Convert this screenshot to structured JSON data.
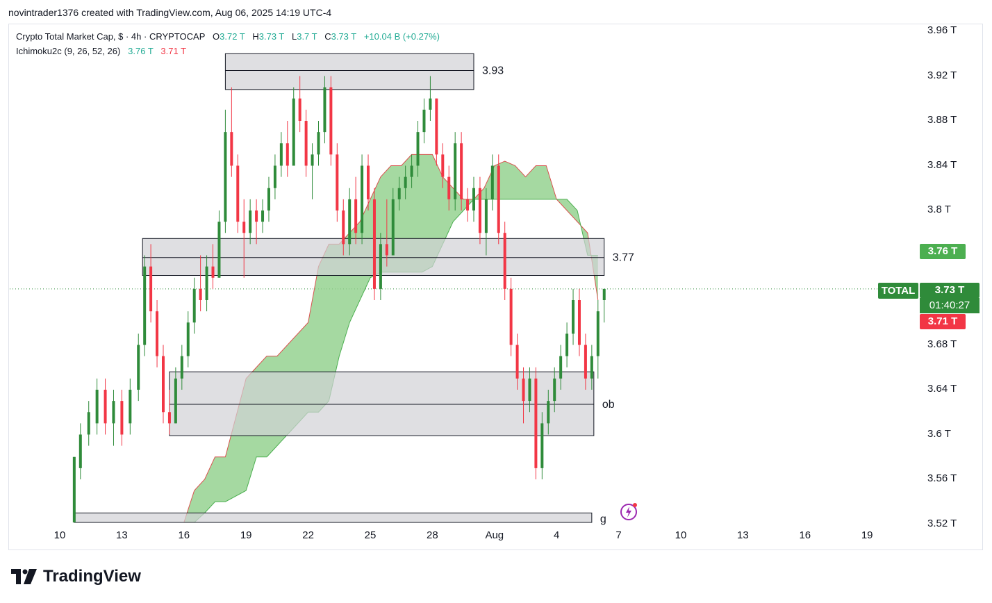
{
  "header": {
    "caption": "novintrader1376 created with TradingView.com, Aug 06, 2025 14:19 UTC-4"
  },
  "legend": {
    "symbol_line": "Crypto Total Market Cap, $ · 4h · CRYPTOCAP",
    "o_label": "O",
    "o_value": "3.72 T",
    "h_label": "H",
    "h_value": "3.73 T",
    "l_label": "L",
    "l_value": "3.7 T",
    "c_label": "C",
    "c_value": "3.73 T",
    "change": "+10.04 B (+0.27%)",
    "indicator": "Ichimoku2c (9, 26, 52, 26)",
    "ind_value1": "3.76 T",
    "ind_value2": "3.71 T"
  },
  "colors": {
    "bull": "#2f8b3a",
    "bear": "#f23645",
    "cloud": "#8fd08a",
    "zone_fill": "#d1d1d6",
    "zone_border": "#131722",
    "tag_green": "#2f8b3a",
    "tag_lightgreen": "#4caf50",
    "tag_red": "#f23645"
  },
  "price_axis": {
    "labels": [
      "3.96 T",
      "3.92 T",
      "3.88 T",
      "3.84 T",
      "3.8 T",
      "3.76 T",
      "3.72 T",
      "3.68 T",
      "3.64 T",
      "3.6 T",
      "3.56 T",
      "3.52 T"
    ],
    "tags": {
      "span_a": "3.76 T",
      "symbol": "TOTAL",
      "last": "3.73 T",
      "countdown": "01:40:27",
      "span_b": "3.71 T"
    }
  },
  "time_axis": {
    "labels": [
      "10",
      "13",
      "16",
      "19",
      "22",
      "25",
      "28",
      "Aug",
      "4",
      "7",
      "10",
      "13",
      "16",
      "19"
    ]
  },
  "branding": {
    "name": "TradingView"
  },
  "chart_data": {
    "type": "candlestick",
    "symbol": "Crypto Total Market Cap",
    "timeframe": "4h",
    "ylim": [
      3.51,
      3.97
    ],
    "last_price": 3.73,
    "zones": [
      {
        "label": "3.93",
        "from": 3.908,
        "to": 3.94,
        "mid": 3.925,
        "start_day": 18,
        "end_day": 30
      },
      {
        "label": "3.77",
        "from": 3.742,
        "to": 3.775,
        "mid": 3.758,
        "start_day": 14,
        "end_day": 36.3
      },
      {
        "label": "ob",
        "from": 3.599,
        "to": 3.656,
        "mid": 3.627,
        "start_day": 15.3,
        "end_day": 35.8
      },
      {
        "label": "g",
        "from": 3.5,
        "to": 3.53,
        "mid": 3.52,
        "start_day": 10.7,
        "end_day": 35.7
      }
    ],
    "cloud": {
      "days": [
        14,
        16,
        16.5,
        17,
        17.5,
        18,
        19,
        19.5,
        20,
        20.5,
        21,
        21.5,
        22,
        22.5,
        23,
        23.5,
        24,
        24.5,
        25,
        25.5,
        26,
        26.5,
        27,
        27.5,
        28,
        28.5,
        29,
        29.5,
        30,
        30.5,
        31,
        31.5,
        32,
        32.5,
        33,
        33.5,
        34,
        34.5,
        35,
        35.5,
        36
      ],
      "span_a": [
        3.5,
        3.52,
        3.55,
        3.56,
        3.58,
        3.58,
        3.65,
        3.66,
        3.67,
        3.67,
        3.68,
        3.69,
        3.7,
        3.75,
        3.77,
        3.77,
        3.78,
        3.79,
        3.81,
        3.83,
        3.84,
        3.84,
        3.85,
        3.85,
        3.85,
        3.83,
        3.82,
        3.81,
        3.81,
        3.82,
        3.84,
        3.844,
        3.84,
        3.83,
        3.84,
        3.84,
        3.81,
        3.8,
        3.79,
        3.78,
        3.72
      ],
      "span_b": [
        3.48,
        3.5,
        3.52,
        3.53,
        3.54,
        3.54,
        3.55,
        3.58,
        3.58,
        3.59,
        3.6,
        3.61,
        3.62,
        3.62,
        3.63,
        3.67,
        3.7,
        3.72,
        3.74,
        3.745,
        3.745,
        3.745,
        3.745,
        3.745,
        3.75,
        3.77,
        3.79,
        3.8,
        3.81,
        3.81,
        3.81,
        3.81,
        3.81,
        3.81,
        3.81,
        3.81,
        3.81,
        3.81,
        3.8,
        3.76,
        3.76
      ]
    },
    "candles": [
      {
        "day": 10.7,
        "o": 3.52,
        "h": 3.58,
        "l": 3.52,
        "c": 3.58
      },
      {
        "day": 11.0,
        "o": 3.57,
        "h": 3.61,
        "l": 3.56,
        "c": 3.6
      },
      {
        "day": 11.4,
        "o": 3.6,
        "h": 3.63,
        "l": 3.59,
        "c": 3.62
      },
      {
        "day": 11.8,
        "o": 3.61,
        "h": 3.65,
        "l": 3.6,
        "c": 3.64
      },
      {
        "day": 12.2,
        "o": 3.64,
        "h": 3.65,
        "l": 3.6,
        "c": 3.61
      },
      {
        "day": 12.6,
        "o": 3.61,
        "h": 3.64,
        "l": 3.59,
        "c": 3.63
      },
      {
        "day": 13.0,
        "o": 3.63,
        "h": 3.64,
        "l": 3.59,
        "c": 3.6
      },
      {
        "day": 13.4,
        "o": 3.61,
        "h": 3.65,
        "l": 3.6,
        "c": 3.64
      },
      {
        "day": 13.8,
        "o": 3.64,
        "h": 3.69,
        "l": 3.63,
        "c": 3.68
      },
      {
        "day": 14.1,
        "o": 3.68,
        "h": 3.76,
        "l": 3.67,
        "c": 3.75
      },
      {
        "day": 14.4,
        "o": 3.75,
        "h": 3.77,
        "l": 3.7,
        "c": 3.71
      },
      {
        "day": 14.7,
        "o": 3.71,
        "h": 3.72,
        "l": 3.66,
        "c": 3.67
      },
      {
        "day": 15.0,
        "o": 3.67,
        "h": 3.68,
        "l": 3.61,
        "c": 3.62
      },
      {
        "day": 15.3,
        "o": 3.62,
        "h": 3.64,
        "l": 3.6,
        "c": 3.61
      },
      {
        "day": 15.6,
        "o": 3.61,
        "h": 3.66,
        "l": 3.61,
        "c": 3.65
      },
      {
        "day": 15.9,
        "o": 3.65,
        "h": 3.68,
        "l": 3.64,
        "c": 3.67
      },
      {
        "day": 16.2,
        "o": 3.67,
        "h": 3.71,
        "l": 3.66,
        "c": 3.7
      },
      {
        "day": 16.5,
        "o": 3.7,
        "h": 3.74,
        "l": 3.69,
        "c": 3.73
      },
      {
        "day": 16.8,
        "o": 3.73,
        "h": 3.76,
        "l": 3.71,
        "c": 3.72
      },
      {
        "day": 17.1,
        "o": 3.72,
        "h": 3.76,
        "l": 3.71,
        "c": 3.75
      },
      {
        "day": 17.4,
        "o": 3.75,
        "h": 3.77,
        "l": 3.73,
        "c": 3.74
      },
      {
        "day": 17.7,
        "o": 3.74,
        "h": 3.8,
        "l": 3.74,
        "c": 3.79
      },
      {
        "day": 18.0,
        "o": 3.79,
        "h": 3.89,
        "l": 3.78,
        "c": 3.87
      },
      {
        "day": 18.3,
        "o": 3.87,
        "h": 3.91,
        "l": 3.83,
        "c": 3.84
      },
      {
        "day": 18.6,
        "o": 3.84,
        "h": 3.85,
        "l": 3.78,
        "c": 3.79
      },
      {
        "day": 18.9,
        "o": 3.79,
        "h": 3.81,
        "l": 3.74,
        "c": 3.78
      },
      {
        "day": 19.2,
        "o": 3.78,
        "h": 3.81,
        "l": 3.77,
        "c": 3.8
      },
      {
        "day": 19.5,
        "o": 3.8,
        "h": 3.81,
        "l": 3.77,
        "c": 3.79
      },
      {
        "day": 19.8,
        "o": 3.79,
        "h": 3.81,
        "l": 3.78,
        "c": 3.8
      },
      {
        "day": 20.1,
        "o": 3.8,
        "h": 3.83,
        "l": 3.79,
        "c": 3.82
      },
      {
        "day": 20.4,
        "o": 3.82,
        "h": 3.85,
        "l": 3.81,
        "c": 3.84
      },
      {
        "day": 20.7,
        "o": 3.84,
        "h": 3.87,
        "l": 3.83,
        "c": 3.86
      },
      {
        "day": 21.0,
        "o": 3.86,
        "h": 3.88,
        "l": 3.83,
        "c": 3.84
      },
      {
        "day": 21.3,
        "o": 3.84,
        "h": 3.91,
        "l": 3.84,
        "c": 3.9
      },
      {
        "day": 21.6,
        "o": 3.9,
        "h": 3.92,
        "l": 3.87,
        "c": 3.88
      },
      {
        "day": 21.9,
        "o": 3.88,
        "h": 3.89,
        "l": 3.83,
        "c": 3.84
      },
      {
        "day": 22.2,
        "o": 3.84,
        "h": 3.86,
        "l": 3.81,
        "c": 3.85
      },
      {
        "day": 22.5,
        "o": 3.85,
        "h": 3.88,
        "l": 3.84,
        "c": 3.87
      },
      {
        "day": 22.8,
        "o": 3.87,
        "h": 3.92,
        "l": 3.86,
        "c": 3.91
      },
      {
        "day": 23.1,
        "o": 3.91,
        "h": 3.92,
        "l": 3.84,
        "c": 3.85
      },
      {
        "day": 23.4,
        "o": 3.85,
        "h": 3.86,
        "l": 3.79,
        "c": 3.8
      },
      {
        "day": 23.7,
        "o": 3.8,
        "h": 3.81,
        "l": 3.76,
        "c": 3.77
      },
      {
        "day": 24.0,
        "o": 3.77,
        "h": 3.82,
        "l": 3.76,
        "c": 3.81
      },
      {
        "day": 24.3,
        "o": 3.81,
        "h": 3.83,
        "l": 3.77,
        "c": 3.78
      },
      {
        "day": 24.6,
        "o": 3.78,
        "h": 3.85,
        "l": 3.77,
        "c": 3.84
      },
      {
        "day": 24.9,
        "o": 3.84,
        "h": 3.85,
        "l": 3.8,
        "c": 3.81
      },
      {
        "day": 25.2,
        "o": 3.81,
        "h": 3.82,
        "l": 3.72,
        "c": 3.73
      },
      {
        "day": 25.5,
        "o": 3.73,
        "h": 3.78,
        "l": 3.72,
        "c": 3.77
      },
      {
        "day": 25.8,
        "o": 3.77,
        "h": 3.81,
        "l": 3.75,
        "c": 3.76
      },
      {
        "day": 26.1,
        "o": 3.76,
        "h": 3.82,
        "l": 3.76,
        "c": 3.81
      },
      {
        "day": 26.4,
        "o": 3.81,
        "h": 3.83,
        "l": 3.8,
        "c": 3.82
      },
      {
        "day": 26.7,
        "o": 3.82,
        "h": 3.84,
        "l": 3.81,
        "c": 3.83
      },
      {
        "day": 27.0,
        "o": 3.83,
        "h": 3.85,
        "l": 3.82,
        "c": 3.84
      },
      {
        "day": 27.3,
        "o": 3.84,
        "h": 3.88,
        "l": 3.83,
        "c": 3.87
      },
      {
        "day": 27.6,
        "o": 3.87,
        "h": 3.9,
        "l": 3.86,
        "c": 3.89
      },
      {
        "day": 27.9,
        "o": 3.89,
        "h": 3.92,
        "l": 3.88,
        "c": 3.9
      },
      {
        "day": 28.2,
        "o": 3.9,
        "h": 3.9,
        "l": 3.84,
        "c": 3.85
      },
      {
        "day": 28.5,
        "o": 3.85,
        "h": 3.86,
        "l": 3.82,
        "c": 3.83
      },
      {
        "day": 28.8,
        "o": 3.83,
        "h": 3.84,
        "l": 3.8,
        "c": 3.81
      },
      {
        "day": 29.1,
        "o": 3.81,
        "h": 3.87,
        "l": 3.8,
        "c": 3.86
      },
      {
        "day": 29.4,
        "o": 3.86,
        "h": 3.87,
        "l": 3.8,
        "c": 3.81
      },
      {
        "day": 29.7,
        "o": 3.81,
        "h": 3.82,
        "l": 3.79,
        "c": 3.8
      },
      {
        "day": 30.0,
        "o": 3.8,
        "h": 3.83,
        "l": 3.79,
        "c": 3.82
      },
      {
        "day": 30.3,
        "o": 3.82,
        "h": 3.83,
        "l": 3.77,
        "c": 3.78
      },
      {
        "day": 30.6,
        "o": 3.78,
        "h": 3.82,
        "l": 3.76,
        "c": 3.81
      },
      {
        "day": 30.9,
        "o": 3.81,
        "h": 3.85,
        "l": 3.8,
        "c": 3.84
      },
      {
        "day": 31.2,
        "o": 3.84,
        "h": 3.85,
        "l": 3.77,
        "c": 3.78
      },
      {
        "day": 31.5,
        "o": 3.78,
        "h": 3.79,
        "l": 3.72,
        "c": 3.73
      },
      {
        "day": 31.8,
        "o": 3.73,
        "h": 3.74,
        "l": 3.67,
        "c": 3.68
      },
      {
        "day": 32.1,
        "o": 3.68,
        "h": 3.69,
        "l": 3.64,
        "c": 3.65
      },
      {
        "day": 32.4,
        "o": 3.65,
        "h": 3.66,
        "l": 3.61,
        "c": 3.63
      },
      {
        "day": 32.7,
        "o": 3.63,
        "h": 3.66,
        "l": 3.62,
        "c": 3.65
      },
      {
        "day": 33.0,
        "o": 3.65,
        "h": 3.66,
        "l": 3.56,
        "c": 3.57
      },
      {
        "day": 33.3,
        "o": 3.57,
        "h": 3.62,
        "l": 3.56,
        "c": 3.61
      },
      {
        "day": 33.6,
        "o": 3.61,
        "h": 3.64,
        "l": 3.6,
        "c": 3.63
      },
      {
        "day": 33.9,
        "o": 3.63,
        "h": 3.66,
        "l": 3.62,
        "c": 3.65
      },
      {
        "day": 34.2,
        "o": 3.65,
        "h": 3.68,
        "l": 3.64,
        "c": 3.67
      },
      {
        "day": 34.5,
        "o": 3.67,
        "h": 3.7,
        "l": 3.66,
        "c": 3.69
      },
      {
        "day": 34.8,
        "o": 3.69,
        "h": 3.73,
        "l": 3.68,
        "c": 3.72
      },
      {
        "day": 35.1,
        "o": 3.72,
        "h": 3.73,
        "l": 3.67,
        "c": 3.68
      },
      {
        "day": 35.4,
        "o": 3.68,
        "h": 3.69,
        "l": 3.64,
        "c": 3.65
      },
      {
        "day": 35.7,
        "o": 3.65,
        "h": 3.68,
        "l": 3.64,
        "c": 3.67
      },
      {
        "day": 36.0,
        "o": 3.67,
        "h": 3.72,
        "l": 3.65,
        "c": 3.71
      },
      {
        "day": 36.3,
        "o": 3.72,
        "h": 3.73,
        "l": 3.7,
        "c": 3.73
      }
    ]
  }
}
